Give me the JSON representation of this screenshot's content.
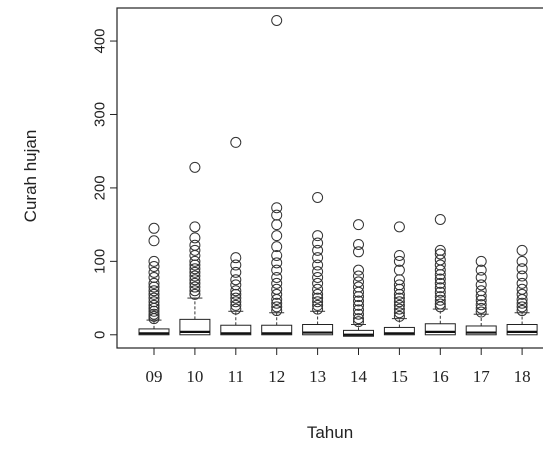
{
  "chart_data": {
    "type": "boxplot",
    "xlabel": "Tahun",
    "ylabel": "Curah hujan",
    "ylim": [
      -18,
      445
    ],
    "yticks": [
      0,
      100,
      200,
      300,
      400
    ],
    "grid": false,
    "legend": "none",
    "categories": [
      "09",
      "10",
      "11",
      "12",
      "13",
      "14",
      "15",
      "16",
      "17",
      "18"
    ],
    "boxes": [
      {
        "category": "09",
        "q1": 0,
        "median": 2,
        "q3": 8,
        "upper_whisker": 20,
        "outliers": [
          22,
          25,
          28,
          32,
          36,
          40,
          45,
          50,
          55,
          60,
          65,
          70,
          78,
          85,
          93,
          100,
          128,
          145
        ]
      },
      {
        "category": "10",
        "q1": 0,
        "median": 4,
        "q3": 21,
        "upper_whisker": 50,
        "outliers": [
          55,
          60,
          65,
          70,
          75,
          80,
          85,
          90,
          95,
          100,
          108,
          115,
          122,
          132,
          147,
          228
        ]
      },
      {
        "category": "11",
        "q1": 0,
        "median": 2,
        "q3": 13,
        "upper_whisker": 32,
        "outliers": [
          35,
          40,
          45,
          50,
          55,
          60,
          68,
          75,
          85,
          95,
          105,
          262
        ]
      },
      {
        "category": "12",
        "q1": 0,
        "median": 2,
        "q3": 13,
        "upper_whisker": 30,
        "outliers": [
          33,
          38,
          43,
          48,
          55,
          62,
          70,
          78,
          88,
          98,
          108,
          120,
          135,
          150,
          163,
          173,
          428
        ]
      },
      {
        "category": "13",
        "q1": 0,
        "median": 3,
        "q3": 14,
        "upper_whisker": 32,
        "outliers": [
          35,
          40,
          45,
          50,
          55,
          62,
          70,
          78,
          86,
          95,
          105,
          115,
          125,
          135,
          187
        ]
      },
      {
        "category": "14",
        "q1": -2,
        "median": 0,
        "q3": 6,
        "upper_whisker": 14,
        "outliers": [
          18,
          22,
          28,
          34,
          40,
          46,
          52,
          58,
          65,
          72,
          80,
          88,
          113,
          123,
          150
        ]
      },
      {
        "category": "15",
        "q1": 0,
        "median": 2,
        "q3": 10,
        "upper_whisker": 22,
        "outliers": [
          25,
          30,
          35,
          40,
          45,
          50,
          55,
          62,
          68,
          75,
          88,
          100,
          108,
          147
        ]
      },
      {
        "category": "16",
        "q1": 0,
        "median": 4,
        "q3": 15,
        "upper_whisker": 35,
        "outliers": [
          38,
          42,
          47,
          52,
          58,
          64,
          70,
          76,
          82,
          88,
          95,
          102,
          110,
          115,
          157
        ]
      },
      {
        "category": "17",
        "q1": 0,
        "median": 3,
        "q3": 12,
        "upper_whisker": 28,
        "outliers": [
          31,
          36,
          41,
          47,
          53,
          60,
          68,
          78,
          88,
          100
        ]
      },
      {
        "category": "18",
        "q1": 0,
        "median": 4,
        "q3": 14,
        "upper_whisker": 30,
        "outliers": [
          33,
          38,
          43,
          48,
          55,
          62,
          70,
          80,
          90,
          100,
          115
        ]
      }
    ]
  }
}
